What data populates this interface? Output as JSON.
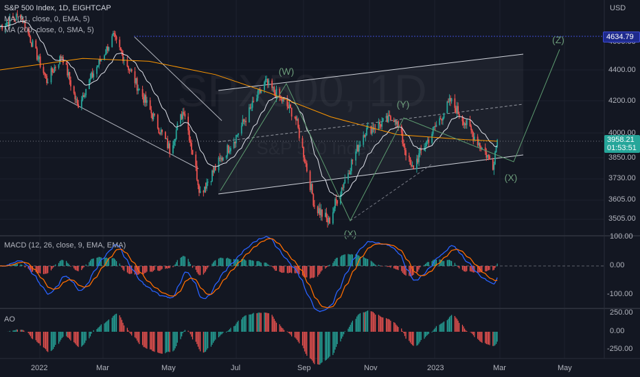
{
  "header": {
    "symbol_line": "S&P 500 Index, 1D, EIGHTCAP",
    "ma21": "MA (21, close, 0, EMA, 5)",
    "ma200": "MA (200, close, 0, SMA, 5)",
    "currency": "USD"
  },
  "watermark": {
    "line1": "SPX500, 1D",
    "line2": "S&P 500 Index"
  },
  "price_axis": {
    "ticks": [
      "4400.00",
      "4200.00",
      "4000.00",
      "3850.00",
      "3730.00",
      "3605.00",
      "3505.00"
    ],
    "partial_tick": "4600.00"
  },
  "price_tags": {
    "level_line": "4634.79",
    "current_price": "3958.21",
    "countdown": "01:53:51",
    "colors": {
      "level": "#3f4cd8",
      "current": "#26a69a"
    }
  },
  "elliott_labels": {
    "w": "(W)",
    "x_bottom": "(X)",
    "y": "(Y)",
    "x_right": "(X)",
    "z": "(Z)"
  },
  "macd_panel": {
    "title": "MACD (12, 26, close, 9, EMA, EMA)",
    "ticks": [
      "100.00",
      "0.00",
      "-100.00"
    ]
  },
  "ao_panel": {
    "title": "AO",
    "ticks": [
      "250.00",
      "0.00",
      "-250.00"
    ]
  },
  "time_axis": [
    "2022",
    "Mar",
    "May",
    "Jul",
    "Sep",
    "Nov",
    "2023",
    "Mar",
    "May"
  ],
  "colors": {
    "background": "#131722",
    "up": "#26a69a",
    "down": "#ef5350",
    "ema21": "#e0e3eb",
    "sma200": "#ff9800",
    "macd": "#2962ff",
    "signal": "#ff6d00",
    "channel": "#d1d4dc"
  },
  "chart_data": {
    "type": "candlestick",
    "title": "S&P 500 Index, 1D, EIGHTCAP",
    "x_range": [
      "2021-12-15",
      "2023-05-31"
    ],
    "y_range": [
      3440,
      4760
    ],
    "price_path": [
      {
        "date": "2021-12-15",
        "value": 4700
      },
      {
        "date": "2022-01-03",
        "value": 4780
      },
      {
        "date": "2022-01-27",
        "value": 4330
      },
      {
        "date": "2022-02-10",
        "value": 4500
      },
      {
        "date": "2022-02-24",
        "value": 4170
      },
      {
        "date": "2022-03-29",
        "value": 4630
      },
      {
        "date": "2022-04-22",
        "value": 4270
      },
      {
        "date": "2022-05-20",
        "value": 3900
      },
      {
        "date": "2022-06-02",
        "value": 4150
      },
      {
        "date": "2022-06-17",
        "value": 3650
      },
      {
        "date": "2022-07-20",
        "value": 3980
      },
      {
        "date": "2022-08-16",
        "value": 4320
      },
      {
        "date": "2022-09-12",
        "value": 4110
      },
      {
        "date": "2022-09-30",
        "value": 3580
      },
      {
        "date": "2022-10-13",
        "value": 3490
      },
      {
        "date": "2022-11-15",
        "value": 4010
      },
      {
        "date": "2022-12-13",
        "value": 4100
      },
      {
        "date": "2022-12-28",
        "value": 3780
      },
      {
        "date": "2023-02-02",
        "value": 4200
      },
      {
        "date": "2023-03-01",
        "value": 3930
      },
      {
        "date": "2023-03-13",
        "value": 3810
      },
      {
        "date": "2023-03-17",
        "value": 3958.21
      }
    ],
    "last_price": 3958.21,
    "level_line": 4634.79
  }
}
